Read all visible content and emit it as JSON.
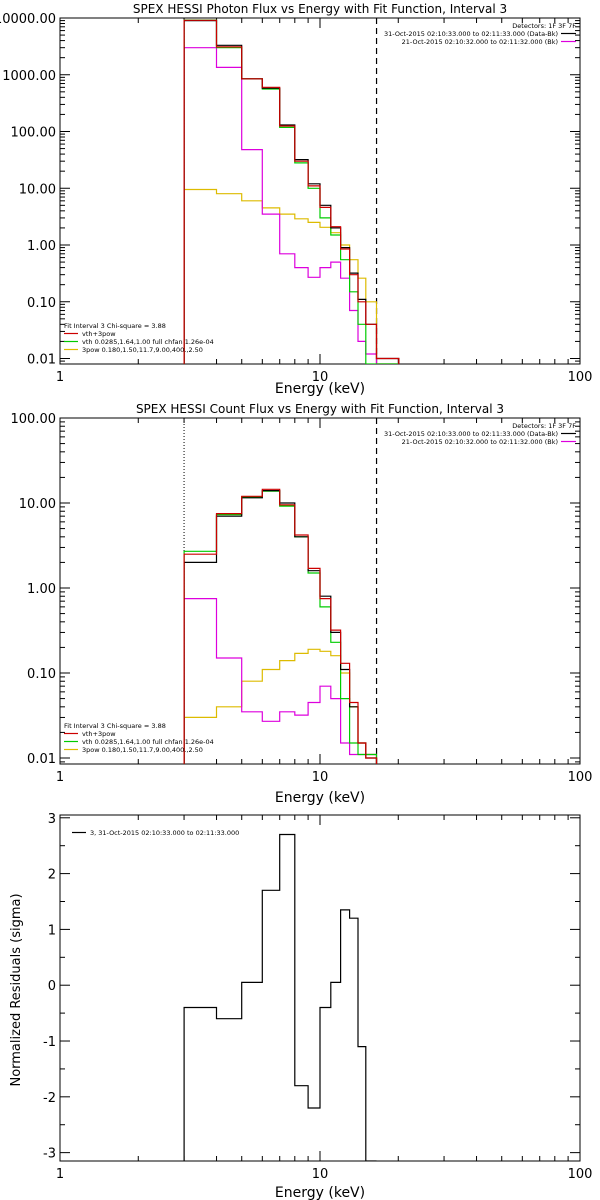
{
  "chart_data": [
    {
      "type": "line",
      "title": "SPEX HESSI Photon Flux vs Energy with Fit Function, Interval 3",
      "xlabel": "Energy (keV)",
      "ylabel": "",
      "xscale": "log",
      "yscale": "log",
      "xlim": [
        1,
        100
      ],
      "ylim": [
        0.008,
        10000
      ],
      "xtick_labels": [
        "1",
        "10",
        "100"
      ],
      "ytick_labels": [
        "10000.00",
        "1000.00",
        "100.00",
        "10.00",
        "1.00",
        "0.10",
        "0.01"
      ],
      "fit_range_keV": [
        3,
        16.5
      ],
      "legend_topright": {
        "header": "Detectors: 1F 3F 7F",
        "entries": [
          {
            "label": "31-Oct-2015 02:10:33.000 to 02:11:33.000 (Data-Bk)",
            "color": "#000000"
          },
          {
            "label": "21-Oct-2015 02:10:32.000 to 02:11:32.000 (Bk)",
            "color": "#dd00dd"
          }
        ]
      },
      "legend_bottomleft": {
        "header": "Fit Interval 3   Chi-square = 3.88",
        "entries": [
          {
            "label": "vth+3pow",
            "color": "#cc0000"
          },
          {
            "label": "vth 0.0285,1.64,1.00  full chfan 1.26e-04",
            "color": "#00cc00"
          },
          {
            "label": "3pow 0.180,1.50,11.7,9.00,400.,2.50",
            "color": "#ddbb00"
          }
        ]
      },
      "bin_edges": [
        3,
        4,
        5,
        6,
        7,
        8,
        9,
        10,
        11,
        12,
        13,
        14,
        15,
        16.5,
        18.2,
        20.1
      ],
      "series": [
        {
          "name": "Data-Bk",
          "color": "#000000",
          "values": [
            9000,
            3300,
            850,
            580,
            130,
            32,
            12,
            5,
            2,
            0.9,
            0.32,
            0.11,
            0.04,
            0.01,
            0.01
          ]
        },
        {
          "name": "vth+3pow",
          "color": "#cc0000",
          "values": [
            9100,
            3100,
            850,
            600,
            125,
            30,
            11,
            4.6,
            2.1,
            0.85,
            0.3,
            0.1,
            0.04,
            0.01,
            0.01
          ]
        },
        {
          "name": "vth",
          "color": "#00cc00",
          "values": [
            9200,
            3000,
            850,
            560,
            118,
            28,
            10,
            3,
            1.5,
            0.55,
            0.15,
            0.04,
            0.008,
            0.008,
            0.008
          ]
        },
        {
          "name": "3pow",
          "color": "#ddbb00",
          "values": [
            9.5,
            8,
            6,
            4.5,
            3.5,
            2.9,
            2.5,
            2.05,
            1.65,
            1.0,
            0.55,
            0.26,
            0.1,
            0.008,
            0.008
          ]
        },
        {
          "name": "Bk",
          "color": "#dd00dd",
          "values": [
            3000,
            1350,
            48,
            3.5,
            0.7,
            0.4,
            0.27,
            0.4,
            0.5,
            0.26,
            0.07,
            0.02,
            0.012,
            0.008,
            0.008
          ]
        }
      ]
    },
    {
      "type": "line",
      "title": "SPEX HESSI Count Flux vs Energy with Fit Function, Interval 3",
      "xlabel": "Energy (keV)",
      "ylabel": "",
      "xscale": "log",
      "yscale": "log",
      "xlim": [
        1,
        100
      ],
      "ylim": [
        0.0085,
        100
      ],
      "xtick_labels": [
        "1",
        "10",
        "100"
      ],
      "ytick_labels": [
        "100.00",
        "10.00",
        "1.00",
        "0.10",
        "0.01"
      ],
      "fit_range_keV": [
        3,
        16.5
      ],
      "legend_topright": {
        "header": "Detectors: 1F 3F 7F",
        "entries": [
          {
            "label": "31-Oct-2015 02:10:33.000 to 02:11:33.000 (Data-Bk)",
            "color": "#000000"
          },
          {
            "label": "21-Oct-2015 02:10:32.000 to 02:11:32.000 (Bk)",
            "color": "#dd00dd"
          }
        ]
      },
      "legend_bottomleft": {
        "header": "Fit Interval 3   Chi-square = 3.88",
        "entries": [
          {
            "label": "vth+3pow",
            "color": "#cc0000"
          },
          {
            "label": "vth 0.0285,1.64,1.00  full chfan 1.26e-04",
            "color": "#00cc00"
          },
          {
            "label": "3pow 0.180,1.50,11.7,9.00,400.,2.50",
            "color": "#ddbb00"
          }
        ]
      },
      "bin_edges": [
        3,
        4,
        5,
        6,
        7,
        8,
        9,
        10,
        11,
        12,
        13,
        14,
        15,
        16.5
      ],
      "series": [
        {
          "name": "Data-Bk",
          "color": "#000000",
          "values": [
            2.0,
            7.0,
            11.5,
            14,
            10,
            4,
            1.6,
            0.8,
            0.3,
            0.11,
            0.04,
            0.015,
            0.01
          ]
        },
        {
          "name": "vth+3pow",
          "color": "#cc0000",
          "values": [
            2.5,
            7.5,
            12,
            14.5,
            9.5,
            4.2,
            1.7,
            0.75,
            0.32,
            0.13,
            0.045,
            0.015,
            0.01
          ]
        },
        {
          "name": "vth",
          "color": "#00cc00",
          "values": [
            2.7,
            7.3,
            11.8,
            13.8,
            9.2,
            4.0,
            1.5,
            0.6,
            0.23,
            0.05,
            0.015,
            0.011,
            0.011
          ]
        },
        {
          "name": "3pow",
          "color": "#ddbb00",
          "values": [
            0.03,
            0.04,
            0.08,
            0.11,
            0.14,
            0.17,
            0.19,
            0.18,
            0.16,
            0.1,
            0.04,
            0.015,
            0.011
          ]
        },
        {
          "name": "Bk",
          "color": "#dd00dd",
          "values": [
            0.75,
            0.15,
            0.035,
            0.027,
            0.035,
            0.032,
            0.045,
            0.07,
            0.05,
            0.015,
            0.011,
            0.011,
            0.011
          ]
        }
      ]
    },
    {
      "type": "line",
      "title": "",
      "xlabel": "Energy (keV)",
      "ylabel": "Normalized Residuals (sigma)",
      "xscale": "log",
      "yscale": "linear",
      "xlim": [
        1,
        100
      ],
      "ylim": [
        -3.15,
        3.05
      ],
      "xtick_labels": [
        "1",
        "10",
        "100"
      ],
      "ytick_labels": [
        "3",
        "2",
        "1",
        "0",
        "-1",
        "-2",
        "-3"
      ],
      "legend": {
        "label": "3, 31-Oct-2015 02:10:33.000 to 02:11:33.000",
        "color": "#000000"
      },
      "bin_edges": [
        3,
        4,
        5,
        6,
        7,
        8,
        9,
        10,
        11,
        12,
        13,
        14,
        15,
        16.5
      ],
      "series": [
        {
          "color": "#000000",
          "values": [
            -0.4,
            -0.6,
            0.05,
            1.7,
            2.7,
            -1.8,
            -2.2,
            -0.4,
            0.05,
            1.35,
            1.2,
            -1.1,
            -3.15
          ]
        }
      ]
    }
  ]
}
